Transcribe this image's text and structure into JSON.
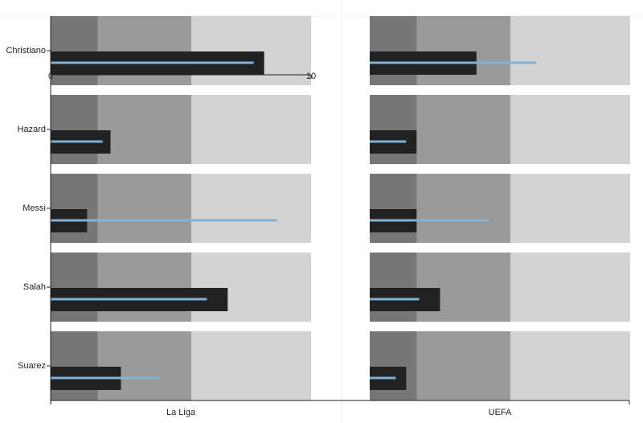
{
  "chart_data": {
    "type": "bullet",
    "categories": [
      "Christiano",
      "Hazard",
      "Messi",
      "Salah",
      "Suarez"
    ],
    "xlim": [
      0,
      10
    ],
    "xticks": [
      0,
      10
    ],
    "range_colors": [
      "#777777",
      "#9a9a9a",
      "#d3d3d3"
    ],
    "bar_color": "#222222",
    "line_color": "#7fb3d5",
    "panels": [
      {
        "name": "La Liga",
        "ranges": [
          1.8,
          5.4,
          10
        ],
        "bars": [
          8.2,
          2.3,
          1.4,
          6.8,
          2.7
        ],
        "lines": [
          7.8,
          2.0,
          8.7,
          6.0,
          4.2
        ]
      },
      {
        "name": "UEFA",
        "ranges": [
          1.8,
          5.4,
          10
        ],
        "bars": [
          4.1,
          1.8,
          1.8,
          2.7,
          1.4
        ],
        "lines": [
          6.4,
          1.4,
          4.6,
          1.9,
          1.0
        ]
      }
    ]
  }
}
